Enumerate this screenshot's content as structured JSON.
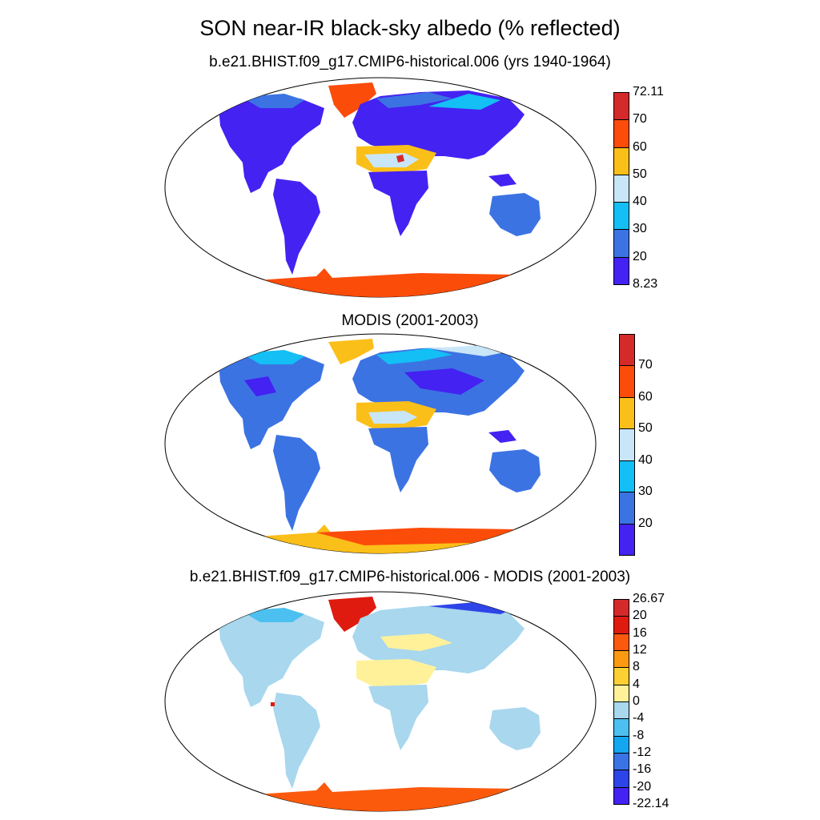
{
  "title": "SON near-IR black-sky albedo (% reflected)",
  "panels": [
    {
      "subtitle": "b.e21.BHIST.f09_g17.CMIP6-historical.006 (yrs 1940-1964)",
      "colorbar": {
        "colors": [
          "#4422f2",
          "#3c73e3",
          "#13bff4",
          "#c9e6f8",
          "#fbbf19",
          "#fb4c0a",
          "#d42a2a"
        ],
        "labels": [
          "8.23",
          "20",
          "30",
          "40",
          "50",
          "60",
          "70",
          "72.11"
        ]
      }
    },
    {
      "subtitle": "MODIS (2001-2003)",
      "colorbar": {
        "colors": [
          "#4422f2",
          "#3c73e3",
          "#13bff4",
          "#c9e6f8",
          "#fbbf19",
          "#fb4c0a",
          "#d42a2a"
        ],
        "labels": [
          "20",
          "30",
          "40",
          "50",
          "60",
          "70"
        ]
      }
    },
    {
      "subtitle": "b.e21.BHIST.f09_g17.CMIP6-historical.006 - MODIS (2001-2003)",
      "colorbar": {
        "colors": [
          "#4422f2",
          "#2d44e8",
          "#3a73e6",
          "#13a7f2",
          "#4cc0f0",
          "#a8d7ee",
          "#fff19a",
          "#fcd032",
          "#fb9a12",
          "#fb5a0c",
          "#df1b0f",
          "#d42a2a"
        ],
        "labels": [
          "-22.14",
          "-20",
          "-16",
          "-12",
          "-8",
          "-4",
          "0",
          "4",
          "8",
          "12",
          "16",
          "20",
          "26.67"
        ]
      }
    }
  ]
}
